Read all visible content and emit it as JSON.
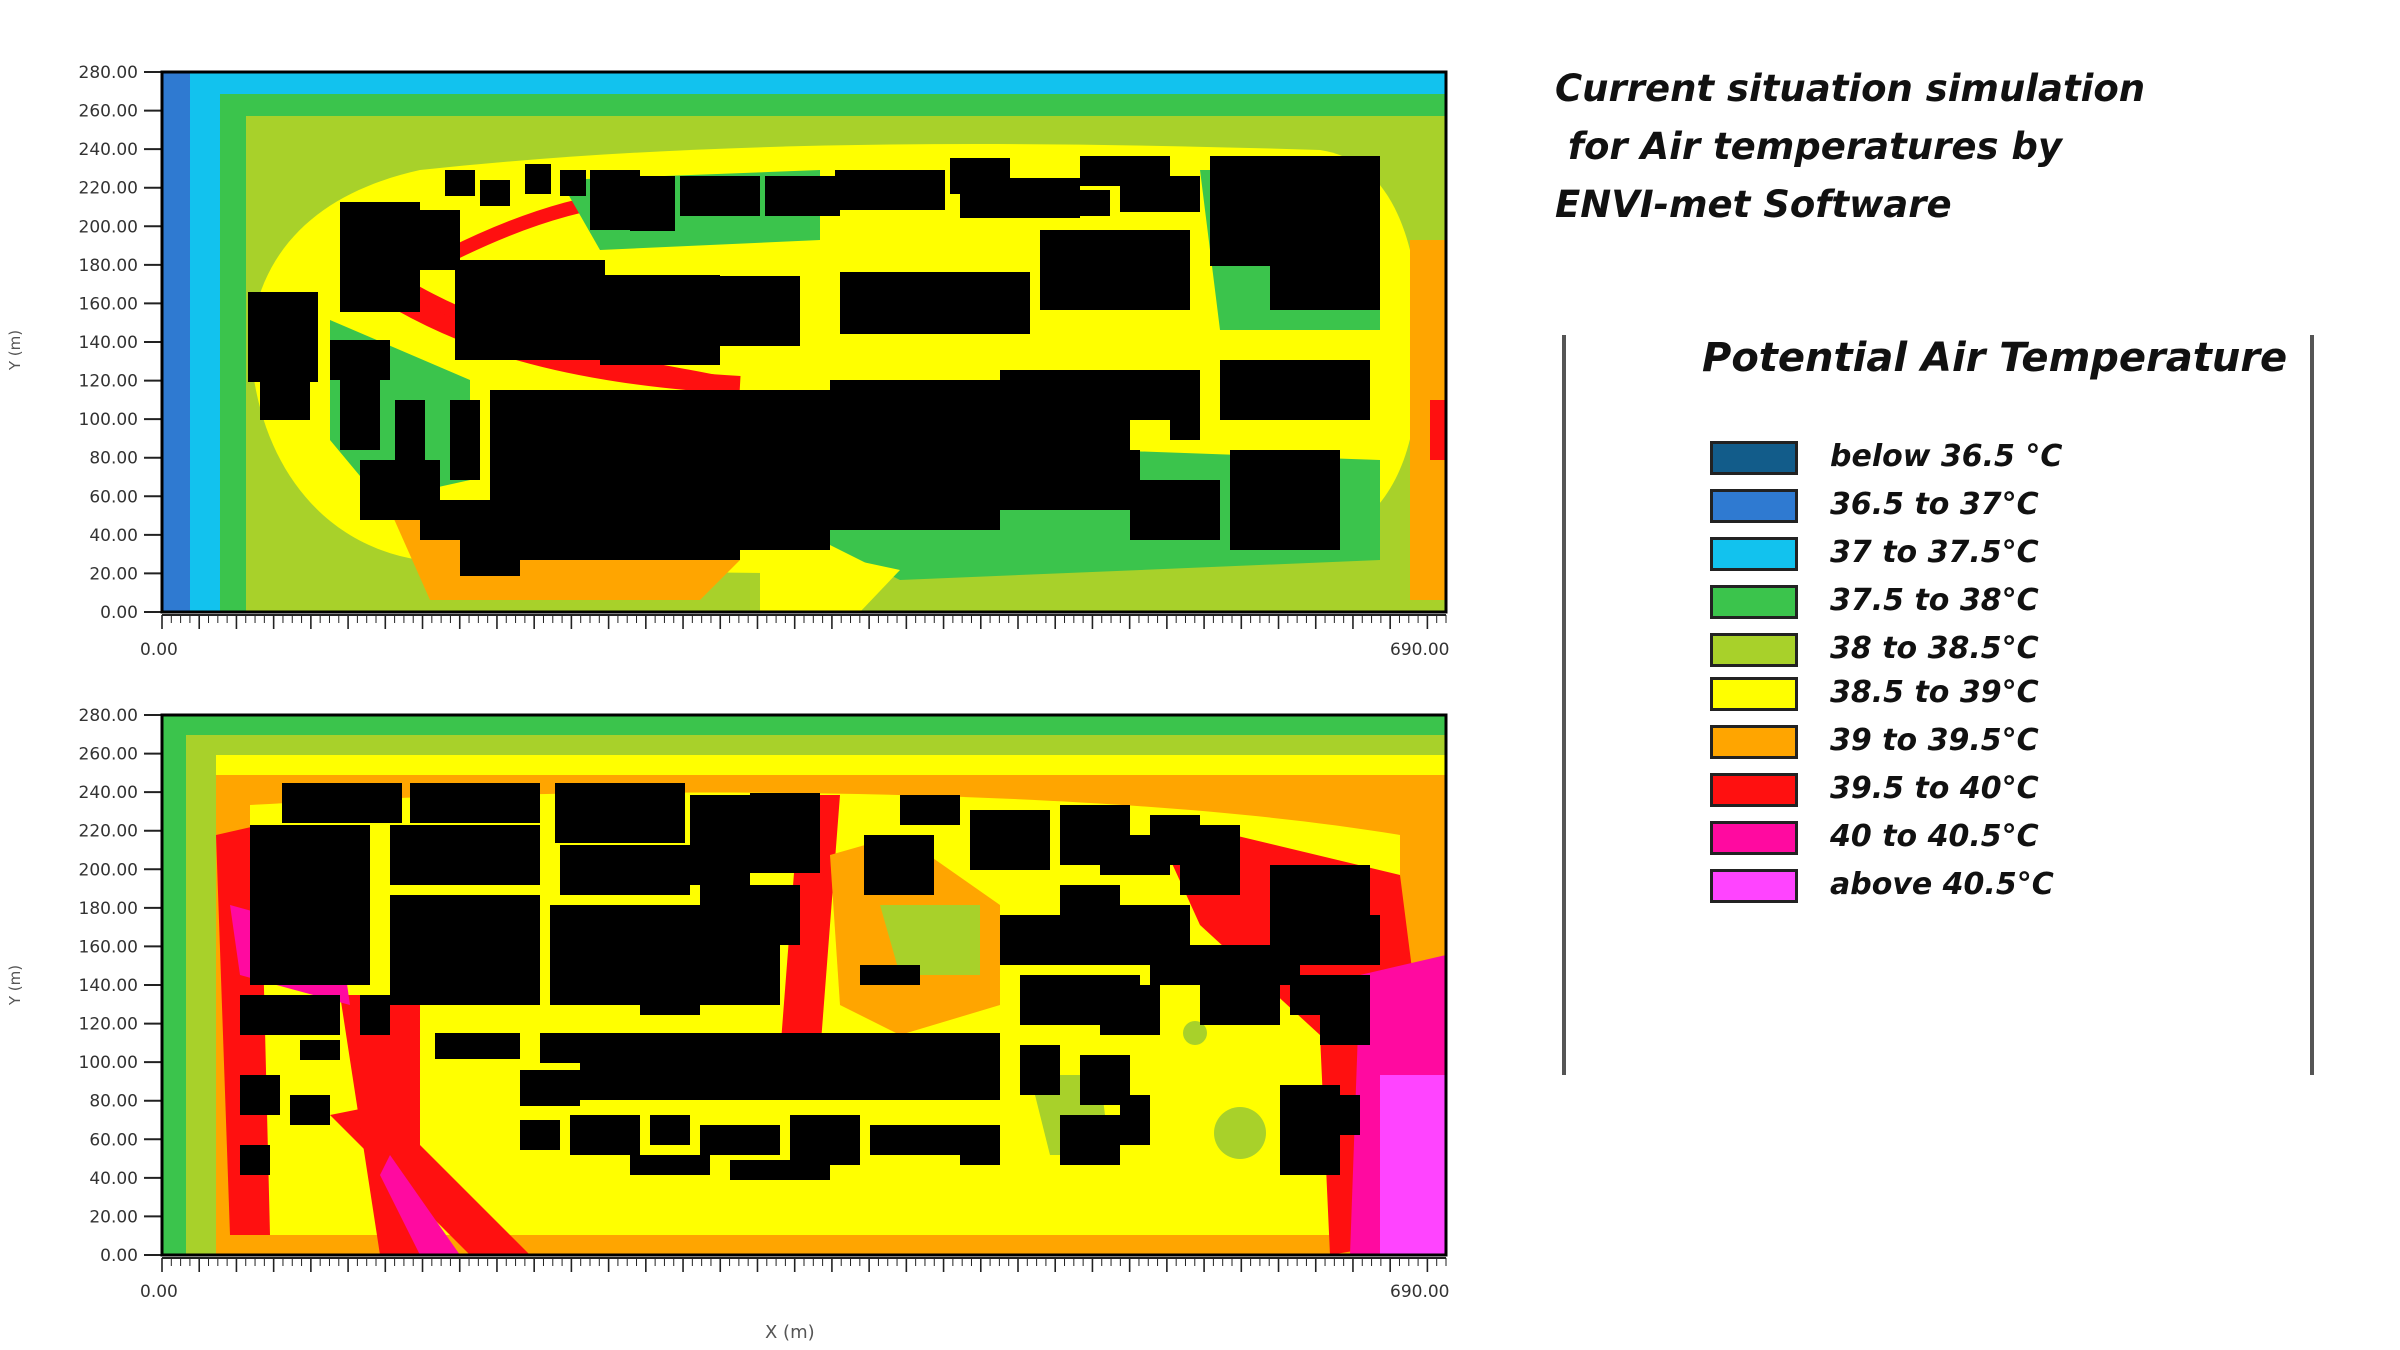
{
  "title_lines": [
    "Current situation simulation",
    " for Air temperatures by",
    "ENVI-met Software"
  ],
  "legend": {
    "title": "Potential Air Temperature",
    "items": [
      {
        "label": "below 36.5 °C",
        "color": "#125C8A"
      },
      {
        "label": "36.5 to 37°C",
        "color": "#2F7AD1"
      },
      {
        "label": "37 to 37.5°C",
        "color": "#12C2EE"
      },
      {
        "label": "37.5 to 38°C",
        "color": "#3BC44C"
      },
      {
        "label": "38 to 38.5°C",
        "color": "#A8D12A"
      },
      {
        "label": "38.5 to 39°C",
        "color": "#FFFF00"
      },
      {
        "label": "39 to 39.5°C",
        "color": "#FFA500"
      },
      {
        "label": "39.5 to 40°C",
        "color": "#FF1010"
      },
      {
        "label": "40 to 40.5°C",
        "color": "#FF0AA0"
      },
      {
        "label": "above 40.5°C",
        "color": "#FF44FF"
      }
    ]
  },
  "chart_data": [
    {
      "type": "heatmap",
      "title": "",
      "xlabel": "",
      "ylabel": "Y (m)",
      "xlim": [
        0,
        690
      ],
      "ylim": [
        0,
        280
      ],
      "yticks": [
        "280.00",
        "260.00",
        "240.00",
        "220.00",
        "200.00",
        "180.00",
        "160.00",
        "140.00",
        "120.00",
        "100.00",
        "80.00",
        "60.00",
        "40.00",
        "20.00",
        "0.00"
      ],
      "xticks_first": "0.00",
      "xticks_last": "690.00",
      "buildings_color": "#000000"
    },
    {
      "type": "heatmap",
      "title": "",
      "xlabel": "X (m)",
      "ylabel": "Y (m)",
      "xlim": [
        0,
        690
      ],
      "ylim": [
        0,
        280
      ],
      "yticks": [
        "280.00",
        "260.00",
        "240.00",
        "220.00",
        "200.00",
        "180.00",
        "160.00",
        "140.00",
        "120.00",
        "100.00",
        "80.00",
        "60.00",
        "40.00",
        "20.00",
        "0.00"
      ],
      "xticks_first": "0.00",
      "xticks_last": "690.00",
      "buildings_color": "#000000"
    }
  ]
}
